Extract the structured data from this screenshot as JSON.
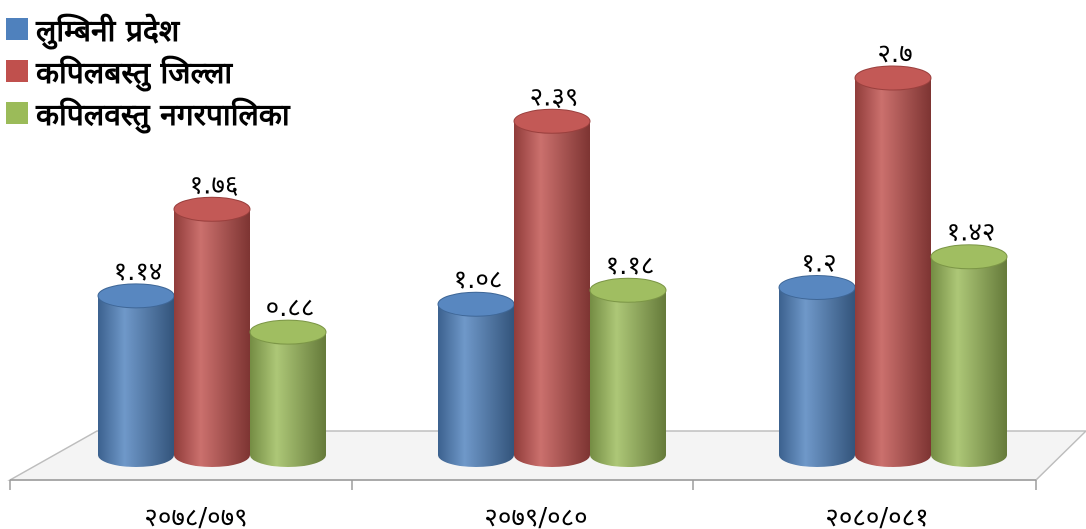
{
  "chart_data": {
    "type": "bar",
    "categories": [
      "२०७८/०७९",
      "२०७९/०८०",
      "२०८०/०८१"
    ],
    "series": [
      {
        "name": "लुम्बिनी प्रदेश",
        "color": "#4F81BD",
        "values": [
          1.14,
          1.08,
          1.2
        ],
        "labels": [
          "१.१४",
          "१.०८",
          "१.२"
        ]
      },
      {
        "name": "कपिलबस्तु जिल्ला",
        "color": "#C0504D",
        "values": [
          1.76,
          2.39,
          2.7
        ],
        "labels": [
          "१.७६",
          "२.३९",
          "२.७"
        ]
      },
      {
        "name": "कपिलवस्तु नगरपालिका",
        "color": "#9BBB59",
        "values": [
          0.88,
          1.18,
          1.42
        ],
        "labels": [
          "०.८८",
          "१.१८",
          "१.४२"
        ]
      }
    ],
    "ylim": [
      0,
      2.7
    ],
    "grid": false,
    "legend": "top-left",
    "style": "3d-cylinder"
  }
}
